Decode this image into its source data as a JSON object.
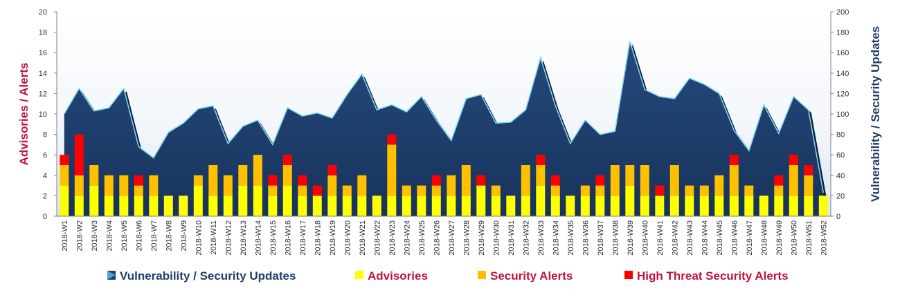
{
  "chart_data": {
    "type": "bar",
    "categories": [
      "2018-W1",
      "2018-W2",
      "2018-W3",
      "2018-W4",
      "2018-W5",
      "2018-W6",
      "2018-W7",
      "2018-W8",
      "2018-W9",
      "2018-W10",
      "2018-W11",
      "2018-W12",
      "2018-W13",
      "2018-W14",
      "2018-W15",
      "2018-W16",
      "2018-W17",
      "2018-W18",
      "2018-W19",
      "2018-W20",
      "2018-W21",
      "2018-W22",
      "2018-W23",
      "2018-W24",
      "2018-W25",
      "2018-W26",
      "2018-W27",
      "2018-W28",
      "2018-W29",
      "2018-W30",
      "2018-W31",
      "2018-W32",
      "2018-W33",
      "2018-W34",
      "2018-W35",
      "2018-W36",
      "2018-W37",
      "2018-W38",
      "2018-W39",
      "2018-W40",
      "2018-W41",
      "2018-W42",
      "2018-W43",
      "2018-W44",
      "2018-W45",
      "2018-W46",
      "2018-W47",
      "2018-W48",
      "2018-W49",
      "2018-W50",
      "2018-W51",
      "2018-W52"
    ],
    "series": [
      {
        "name": "Vulnerability / Security Updates",
        "type": "area",
        "axis": "right",
        "color": "#1f3d6b",
        "values": [
          100,
          125,
          103,
          106,
          125,
          68,
          57,
          82,
          91,
          105,
          108,
          71,
          88,
          94,
          70,
          106,
          98,
          101,
          96,
          119,
          139,
          104,
          109,
          102,
          117,
          94,
          74,
          115,
          119,
          91,
          92,
          104,
          155,
          108,
          71,
          94,
          80,
          83,
          171,
          124,
          117,
          115,
          135,
          129,
          120,
          84,
          64,
          109,
          81,
          117,
          104,
          23
        ]
      },
      {
        "name": "Advisories",
        "axis": "left",
        "color": "#ffff00",
        "values": [
          3,
          2,
          3,
          2,
          2,
          2,
          2,
          2,
          2,
          3,
          2,
          2,
          3,
          3,
          2,
          3,
          2,
          2,
          2,
          2,
          2,
          2,
          2,
          2,
          2,
          2,
          2,
          2,
          3,
          2,
          2,
          2,
          3,
          2,
          2,
          2,
          2,
          2,
          3,
          2,
          2,
          2,
          2,
          2,
          2,
          2,
          2,
          2,
          2,
          2,
          2,
          2
        ]
      },
      {
        "name": "Security Alerts",
        "axis": "left",
        "color": "#ffc000",
        "values": [
          2,
          2,
          2,
          2,
          2,
          1,
          2,
          0,
          0,
          1,
          3,
          2,
          2,
          3,
          1,
          2,
          1,
          0,
          2,
          1,
          2,
          0,
          5,
          1,
          1,
          1,
          2,
          3,
          0,
          1,
          0,
          3,
          2,
          1,
          0,
          1,
          1,
          3,
          2,
          3,
          0,
          3,
          1,
          1,
          2,
          3,
          1,
          0,
          1,
          3,
          2,
          0
        ]
      },
      {
        "name": "High Threat Security Alerts",
        "axis": "left",
        "color": "#ff0000",
        "values": [
          1,
          4,
          0,
          0,
          0,
          1,
          0,
          0,
          0,
          0,
          0,
          0,
          0,
          0,
          1,
          1,
          1,
          1,
          1,
          0,
          0,
          0,
          1,
          0,
          0,
          1,
          0,
          0,
          1,
          0,
          0,
          0,
          1,
          1,
          0,
          0,
          1,
          0,
          0,
          0,
          1,
          0,
          0,
          0,
          0,
          1,
          0,
          0,
          1,
          1,
          1,
          0
        ]
      }
    ],
    "ylabel": "Advisories / Alerts",
    "y2label": "Vulnerability / Security Updates",
    "ylim": [
      0,
      20
    ],
    "y2lim": [
      0,
      200
    ],
    "yticks": [
      0,
      2,
      4,
      6,
      8,
      10,
      12,
      14,
      16,
      18,
      20
    ],
    "y2ticks": [
      0,
      20,
      40,
      60,
      80,
      100,
      120,
      140,
      160,
      180,
      200
    ],
    "legend_position": "bottom",
    "grid": false
  }
}
